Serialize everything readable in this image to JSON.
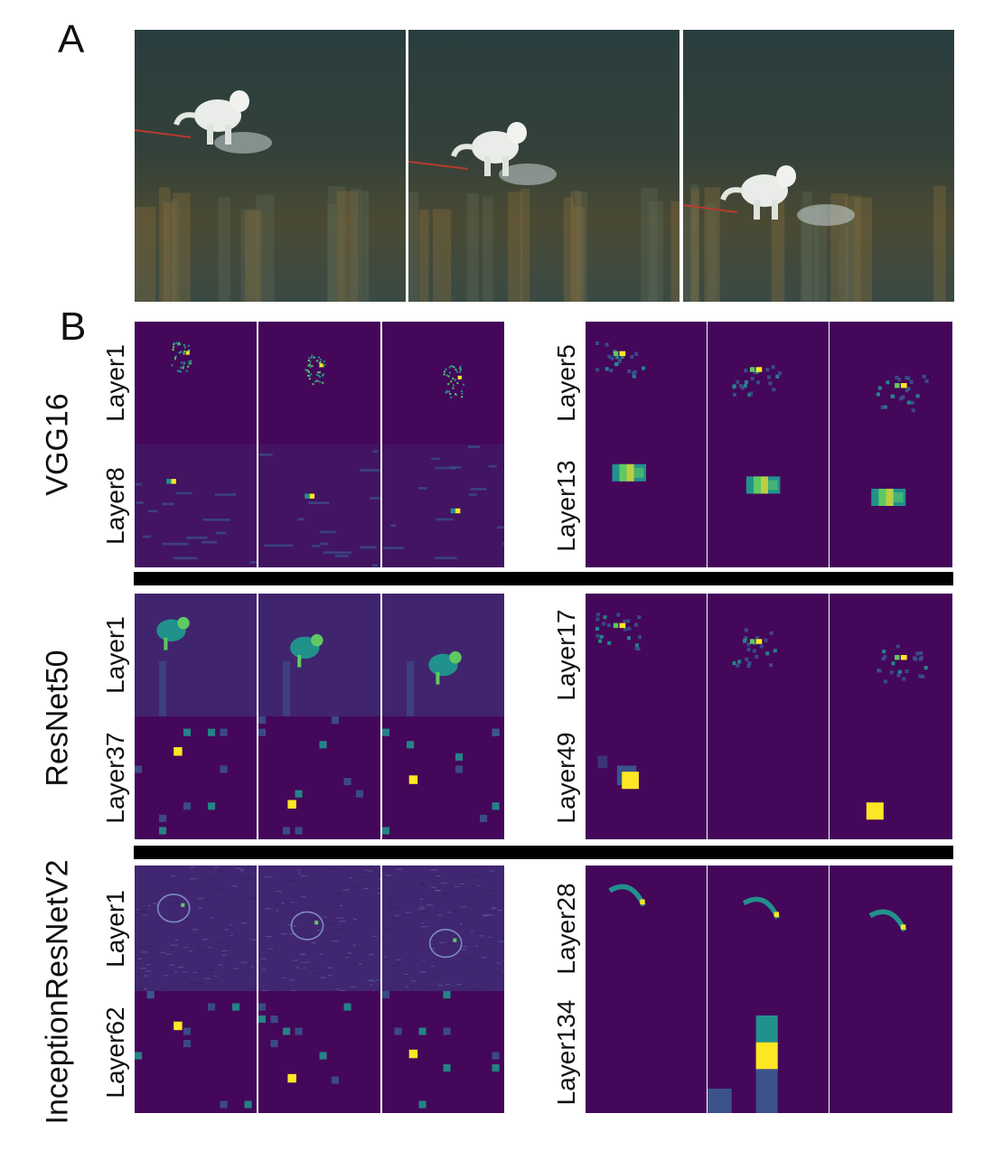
{
  "panel_a": {
    "letter": "A"
  },
  "panel_b": {
    "letter": "B"
  },
  "colors": {
    "background": "#44075a",
    "low": "#3b528b",
    "mid": "#21918c",
    "high": "#5ec962",
    "peak": "#fde725"
  },
  "networks": [
    {
      "name": "VGG16",
      "layers": [
        {
          "name": "Layer1",
          "style": "dog-outline"
        },
        {
          "name": "Layer5",
          "style": "sparse-edges"
        },
        {
          "name": "Layer8",
          "style": "blocky-edges"
        },
        {
          "name": "Layer13",
          "style": "blob"
        }
      ]
    },
    {
      "name": "ResNet50",
      "layers": [
        {
          "name": "Layer1",
          "style": "dog-bright"
        },
        {
          "name": "Layer17",
          "style": "sparse-edges"
        },
        {
          "name": "Layer37",
          "style": "grid-sparse"
        },
        {
          "name": "Layer49",
          "style": "big-blocks"
        }
      ]
    },
    {
      "name": "InceptionResNetV2",
      "layers": [
        {
          "name": "Layer1",
          "style": "texture"
        },
        {
          "name": "Layer28",
          "style": "arc"
        },
        {
          "name": "Layer62",
          "style": "grid-sparse"
        },
        {
          "name": "Layer134",
          "style": "column"
        }
      ]
    }
  ]
}
